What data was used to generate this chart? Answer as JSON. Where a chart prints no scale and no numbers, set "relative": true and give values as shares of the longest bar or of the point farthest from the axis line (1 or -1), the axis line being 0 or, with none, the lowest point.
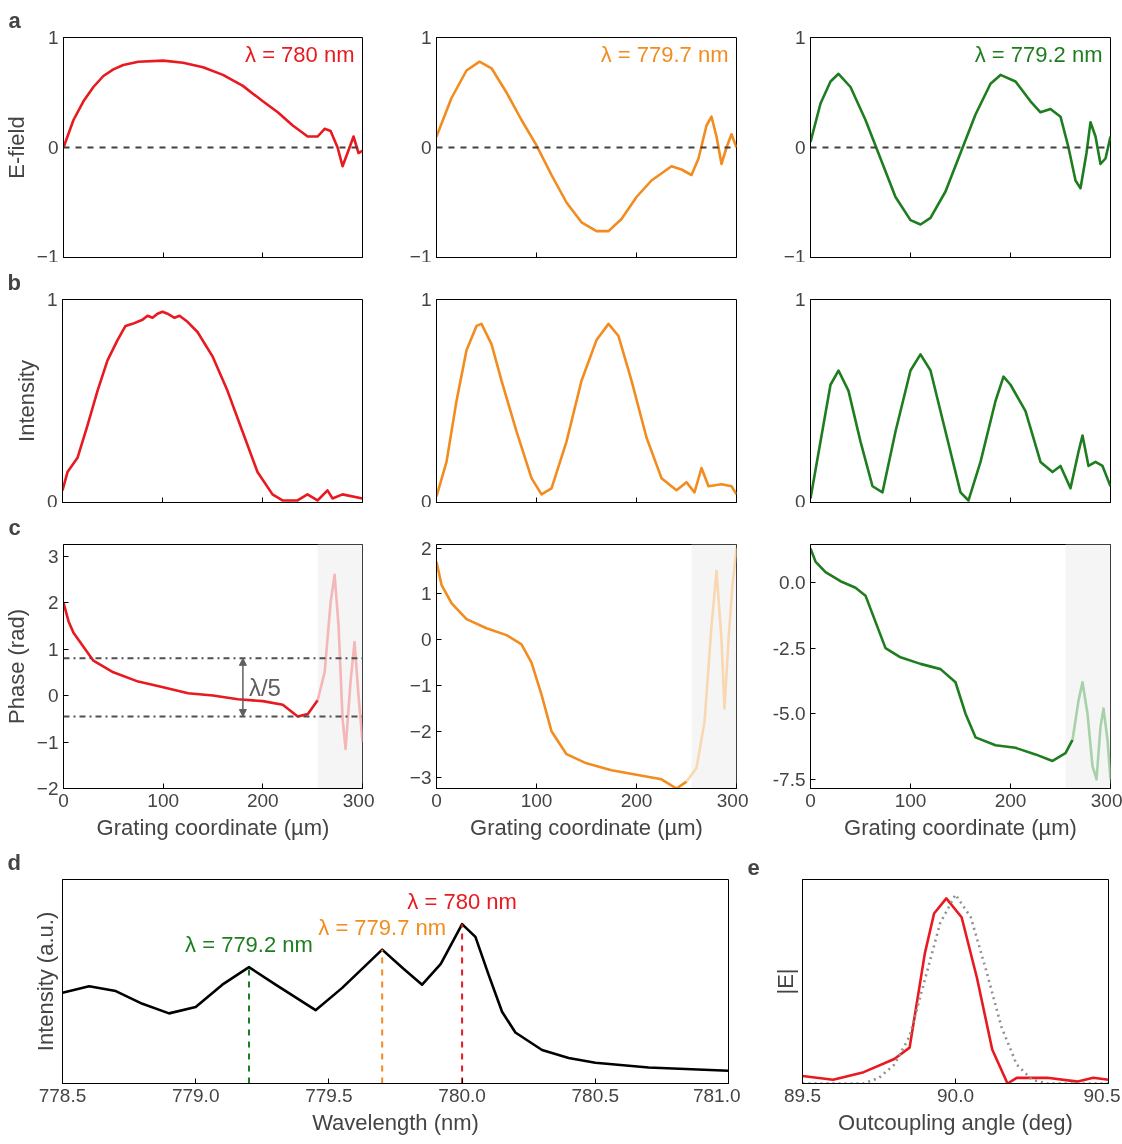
{
  "chart_data": [
    {
      "type": "line",
      "title": "a",
      "ylabel": "E-field",
      "xlim": [
        0,
        300
      ],
      "ylim": [
        -1,
        1
      ],
      "xticks": [
        0,
        100,
        200,
        300
      ],
      "yticks": [
        -1,
        0,
        1
      ],
      "tick_labels": "y",
      "grid": false,
      "ref_lines": [
        {
          "axis": "y",
          "value": 0,
          "color": "#404040",
          "line_style": "dashed"
        }
      ],
      "series": [
        {
          "name": "λ = 780 nm",
          "color": "#e8191f",
          "x": [
            0,
            10,
            20,
            30,
            40,
            50,
            60,
            75,
            100,
            120,
            140,
            160,
            180,
            200,
            215,
            230,
            245,
            255,
            262,
            268,
            275,
            280,
            287,
            291,
            296,
            300
          ],
          "values": [
            0,
            0.25,
            0.42,
            0.55,
            0.65,
            0.71,
            0.75,
            0.78,
            0.79,
            0.77,
            0.73,
            0.66,
            0.56,
            0.42,
            0.32,
            0.2,
            0.1,
            0.1,
            0.17,
            0.15,
            0.0,
            -0.17,
            0.0,
            0.1,
            -0.05,
            -0.03
          ]
        }
      ]
    },
    {
      "type": "line",
      "xlim": [
        0,
        300
      ],
      "ylim": [
        -1,
        1
      ],
      "xticks": [
        0,
        100,
        200,
        300
      ],
      "yticks": [
        -1,
        0,
        1
      ],
      "tick_labels": "y",
      "grid": false,
      "ref_lines": [
        {
          "axis": "y",
          "value": 0,
          "color": "#404040",
          "line_style": "dashed"
        }
      ],
      "series": [
        {
          "name": "λ = 779.7 nm",
          "color": "#f28c1e",
          "x": [
            0,
            15,
            30,
            43,
            55,
            70,
            85,
            100,
            115,
            130,
            145,
            160,
            172,
            185,
            200,
            215,
            235,
            245,
            255,
            262,
            270,
            275,
            280,
            285,
            290,
            295,
            300
          ],
          "values": [
            0.1,
            0.45,
            0.7,
            0.78,
            0.72,
            0.5,
            0.25,
            0.02,
            -0.25,
            -0.5,
            -0.68,
            -0.76,
            -0.76,
            -0.65,
            -0.45,
            -0.3,
            -0.17,
            -0.2,
            -0.25,
            -0.1,
            0.2,
            0.28,
            0.1,
            -0.15,
            0.0,
            0.12,
            0.0
          ]
        }
      ]
    },
    {
      "type": "line",
      "xlim": [
        0,
        300
      ],
      "ylim": [
        -1,
        1
      ],
      "xticks": [
        0,
        100,
        200,
        300
      ],
      "yticks": [
        -1,
        0,
        1
      ],
      "tick_labels": "y",
      "grid": false,
      "ref_lines": [
        {
          "axis": "y",
          "value": 0,
          "color": "#404040",
          "line_style": "dashed"
        }
      ],
      "series": [
        {
          "name": "λ = 779.2 nm",
          "color": "#1e7d1e",
          "x": [
            0,
            10,
            20,
            28,
            40,
            55,
            70,
            85,
            100,
            110,
            120,
            135,
            150,
            165,
            180,
            190,
            205,
            220,
            230,
            240,
            250,
            258,
            265,
            270,
            276,
            280,
            285,
            290,
            295,
            300
          ],
          "values": [
            0.05,
            0.4,
            0.6,
            0.67,
            0.55,
            0.25,
            -0.1,
            -0.45,
            -0.66,
            -0.7,
            -0.64,
            -0.4,
            -0.05,
            0.3,
            0.58,
            0.66,
            0.6,
            0.42,
            0.32,
            0.35,
            0.28,
            0.0,
            -0.3,
            -0.37,
            -0.05,
            0.23,
            0.1,
            -0.15,
            -0.1,
            0.1
          ]
        }
      ]
    },
    {
      "type": "line",
      "title": "b",
      "ylabel": "Intensity",
      "xlim": [
        0,
        300
      ],
      "ylim": [
        0,
        1
      ],
      "xticks": [
        0,
        100,
        200,
        300
      ],
      "yticks": [
        0,
        1
      ],
      "tick_labels": "y",
      "grid": false,
      "series": [
        {
          "color": "#e8191f",
          "x": [
            0,
            5,
            15,
            25,
            35,
            45,
            55,
            63,
            70,
            80,
            85,
            90,
            95,
            100,
            105,
            112,
            117,
            125,
            135,
            150,
            165,
            180,
            195,
            210,
            220,
            235,
            245,
            255,
            265,
            270,
            280,
            300
          ],
          "values": [
            0.06,
            0.15,
            0.22,
            0.38,
            0.55,
            0.7,
            0.8,
            0.87,
            0.88,
            0.9,
            0.92,
            0.91,
            0.93,
            0.94,
            0.93,
            0.91,
            0.92,
            0.89,
            0.84,
            0.72,
            0.55,
            0.35,
            0.15,
            0.04,
            0.01,
            0.01,
            0.04,
            0.01,
            0.06,
            0.02,
            0.04,
            0.02
          ]
        }
      ]
    },
    {
      "type": "line",
      "xlim": [
        0,
        300
      ],
      "ylim": [
        0,
        1
      ],
      "xticks": [
        0,
        100,
        200,
        300
      ],
      "yticks": [
        0,
        1
      ],
      "tick_labels": "y",
      "grid": false,
      "series": [
        {
          "color": "#f28c1e",
          "x": [
            0,
            10,
            20,
            30,
            40,
            45,
            55,
            65,
            80,
            95,
            105,
            115,
            130,
            145,
            160,
            172,
            182,
            195,
            210,
            225,
            240,
            250,
            258,
            265,
            272,
            285,
            295,
            300
          ],
          "values": [
            0.03,
            0.2,
            0.5,
            0.75,
            0.87,
            0.88,
            0.78,
            0.6,
            0.35,
            0.12,
            0.04,
            0.07,
            0.3,
            0.6,
            0.8,
            0.88,
            0.82,
            0.6,
            0.32,
            0.12,
            0.06,
            0.1,
            0.05,
            0.17,
            0.08,
            0.09,
            0.08,
            0.04
          ]
        }
      ]
    },
    {
      "type": "line",
      "xlim": [
        0,
        300
      ],
      "ylim": [
        0,
        1
      ],
      "xticks": [
        0,
        100,
        200,
        300
      ],
      "yticks": [
        0,
        1
      ],
      "tick_labels": "y",
      "grid": false,
      "series": [
        {
          "color": "#1e7d1e",
          "x": [
            0,
            10,
            20,
            28,
            38,
            50,
            62,
            72,
            85,
            100,
            110,
            120,
            135,
            150,
            158,
            170,
            185,
            193,
            200,
            215,
            230,
            242,
            250,
            260,
            268,
            272,
            278,
            285,
            292,
            300
          ],
          "values": [
            0.02,
            0.3,
            0.58,
            0.65,
            0.55,
            0.3,
            0.08,
            0.05,
            0.35,
            0.65,
            0.73,
            0.65,
            0.35,
            0.05,
            0.01,
            0.2,
            0.5,
            0.62,
            0.58,
            0.45,
            0.2,
            0.15,
            0.18,
            0.07,
            0.25,
            0.33,
            0.18,
            0.2,
            0.18,
            0.08
          ]
        }
      ]
    },
    {
      "type": "line",
      "title": "c",
      "ylabel": "Phase (rad)",
      "xlabel": "Grating coordinate (µm)",
      "xlim": [
        0,
        300
      ],
      "ylim": [
        -2,
        3.25
      ],
      "xticks": [
        0,
        100,
        200,
        300
      ],
      "yticks": [
        -2,
        -1,
        0,
        1,
        2,
        3
      ],
      "grid": false,
      "bands": [
        {
          "axis": "x",
          "from": 255,
          "to": 300,
          "color": "#f5f5f5"
        }
      ],
      "ref_lines": [
        {
          "axis": "y",
          "value": 0.8,
          "color": "#505050",
          "line_style": "dashdot"
        },
        {
          "axis": "y",
          "value": -0.45,
          "color": "#505050",
          "line_style": "dashdot"
        }
      ],
      "annotations": [
        "λ/5"
      ],
      "series": [
        {
          "color": "#e8191f",
          "x": [
            0,
            5,
            10,
            20,
            30,
            50,
            75,
            100,
            125,
            150,
            175,
            200,
            220,
            235,
            245,
            255
          ],
          "values": [
            2.0,
            1.6,
            1.35,
            1.05,
            0.75,
            0.5,
            0.3,
            0.18,
            0.05,
            0.0,
            -0.08,
            -0.12,
            -0.2,
            -0.45,
            -0.4,
            -0.1
          ]
        },
        {
          "color": "#f4b6b6",
          "x": [
            255,
            262,
            268,
            272,
            276,
            280,
            283,
            288,
            292,
            296,
            300
          ],
          "values": [
            -0.1,
            0.5,
            2.0,
            2.6,
            1.5,
            -0.5,
            -1.15,
            0.3,
            1.15,
            0.0,
            -1.0
          ]
        }
      ]
    },
    {
      "type": "line",
      "xlabel": "Grating coordinate (µm)",
      "xlim": [
        0,
        300
      ],
      "ylim": [
        -3.25,
        2.08
      ],
      "xticks": [
        0,
        100,
        200,
        300
      ],
      "yticks": [
        -3,
        -2,
        -1,
        0,
        1,
        2
      ],
      "grid": false,
      "bands": [
        {
          "axis": "x",
          "from": 255,
          "to": 300,
          "color": "#f5f5f5"
        }
      ],
      "series": [
        {
          "color": "#f28c1e",
          "x": [
            0,
            5,
            15,
            30,
            50,
            70,
            85,
            95,
            105,
            115,
            130,
            150,
            175,
            200,
            225,
            240,
            250
          ],
          "values": [
            1.7,
            1.2,
            0.8,
            0.45,
            0.25,
            0.1,
            -0.1,
            -0.5,
            -1.2,
            -2.0,
            -2.5,
            -2.7,
            -2.85,
            -2.95,
            -3.05,
            -3.25,
            -3.1
          ]
        },
        {
          "color": "#f9d7b0",
          "x": [
            250,
            260,
            268,
            275,
            280,
            285,
            288,
            292,
            296,
            300
          ],
          "values": [
            -3.1,
            -2.8,
            -1.8,
            0.3,
            1.5,
            0.0,
            -1.5,
            0.0,
            1.2,
            2.0
          ]
        }
      ]
    },
    {
      "type": "line",
      "xlabel": "Grating coordinate (µm)",
      "xlim": [
        0,
        300
      ],
      "ylim": [
        -7.85,
        1.45
      ],
      "xticks": [
        0,
        100,
        200,
        300
      ],
      "yticks": [
        {
          "value": -7.5,
          "label": "-7.5"
        },
        {
          "value": -5,
          "label": "-5.0"
        },
        {
          "value": -2.5,
          "label": "-2.5"
        },
        {
          "value": 0,
          "label": "0.0"
        }
      ],
      "grid": false,
      "bands": [
        {
          "axis": "x",
          "from": 255,
          "to": 300,
          "color": "#f5f5f5"
        }
      ],
      "series": [
        {
          "color": "#1e7d1e",
          "x": [
            0,
            5,
            15,
            30,
            45,
            55,
            65,
            75,
            90,
            110,
            130,
            145,
            155,
            165,
            185,
            205,
            225,
            242,
            255,
            262
          ],
          "values": [
            1.3,
            0.8,
            0.4,
            0.05,
            -0.2,
            -0.5,
            -1.5,
            -2.5,
            -2.85,
            -3.1,
            -3.3,
            -3.8,
            -5.0,
            -5.9,
            -6.2,
            -6.3,
            -6.55,
            -6.8,
            -6.5,
            -6.0
          ]
        },
        {
          "color": "#a9d1a9",
          "x": [
            262,
            268,
            272,
            277,
            282,
            286,
            290,
            293,
            297,
            300
          ],
          "values": [
            -6.0,
            -4.5,
            -3.8,
            -5.0,
            -7.0,
            -7.5,
            -5.5,
            -4.8,
            -6.0,
            -7.5
          ]
        }
      ]
    },
    {
      "type": "line",
      "title": "d",
      "ylabel": "Intensity (a.u.)",
      "xlabel": "Wavelength (nm)",
      "relative": true,
      "xlim": [
        778.5,
        781
      ],
      "xticks": [
        778.5,
        {
          "value": 779,
          "label": "779.0"
        },
        779.5,
        {
          "value": 780,
          "label": "780.0"
        },
        780.5,
        {
          "value": 781,
          "label": "781.0"
        }
      ],
      "grid": false,
      "ref_lines": [
        {
          "axis": "x",
          "value": 779.2,
          "label": "λ = 779.2 nm",
          "color": "#1e7d1e",
          "line_style": "dashed"
        },
        {
          "axis": "x",
          "value": 779.7,
          "label": "λ = 779.7 nm",
          "color": "#f28c1e",
          "line_style": "dashed"
        },
        {
          "axis": "x",
          "value": 780.0,
          "label": "λ = 780 nm",
          "color": "#e8191f",
          "line_style": "dashed"
        }
      ],
      "series": [
        {
          "color": "#000000",
          "x": [
            778.5,
            778.6,
            778.7,
            778.8,
            778.9,
            779.0,
            779.1,
            779.2,
            779.3,
            779.45,
            779.55,
            779.7,
            779.78,
            779.85,
            779.92,
            780.0,
            780.05,
            780.1,
            780.15,
            780.2,
            780.3,
            780.4,
            780.5,
            780.7,
            781.0
          ],
          "values": [
            0.57,
            0.61,
            0.58,
            0.5,
            0.44,
            0.48,
            0.62,
            0.73,
            0.62,
            0.46,
            0.6,
            0.84,
            0.72,
            0.62,
            0.75,
            1.0,
            0.92,
            0.68,
            0.45,
            0.32,
            0.21,
            0.16,
            0.13,
            0.1,
            0.08
          ]
        }
      ]
    },
    {
      "type": "line",
      "title": "e",
      "ylabel": "|E|",
      "xlabel": "Outcoupling angle (deg)",
      "relative": true,
      "xlim": [
        89.5,
        90.5
      ],
      "xticks": [
        89.5,
        {
          "value": 90,
          "label": "90.0"
        },
        90.5
      ],
      "grid": false,
      "series": [
        {
          "color": "#e8191f",
          "line_style": "solid",
          "x": [
            89.5,
            89.6,
            89.7,
            89.8,
            89.85,
            89.9,
            89.93,
            89.97,
            90.02,
            90.07,
            90.12,
            90.17,
            90.2,
            90.3,
            90.4,
            90.45,
            90.5
          ],
          "values": [
            0.04,
            0.02,
            0.06,
            0.13,
            0.19,
            0.69,
            0.9,
            0.98,
            0.88,
            0.56,
            0.18,
            0.0,
            0.03,
            0.03,
            0.01,
            0.03,
            0.02
          ]
        },
        {
          "color": "#909090",
          "line_style": "dotted",
          "x": [
            89.5,
            89.7,
            89.75,
            89.8,
            89.85,
            89.9,
            89.95,
            90.0,
            90.05,
            90.1,
            90.15,
            90.2,
            90.25,
            90.3,
            90.5
          ],
          "values": [
            0,
            0,
            0.03,
            0.1,
            0.25,
            0.55,
            0.85,
            1.0,
            0.88,
            0.6,
            0.3,
            0.1,
            0.02,
            0,
            0
          ]
        }
      ]
    }
  ]
}
